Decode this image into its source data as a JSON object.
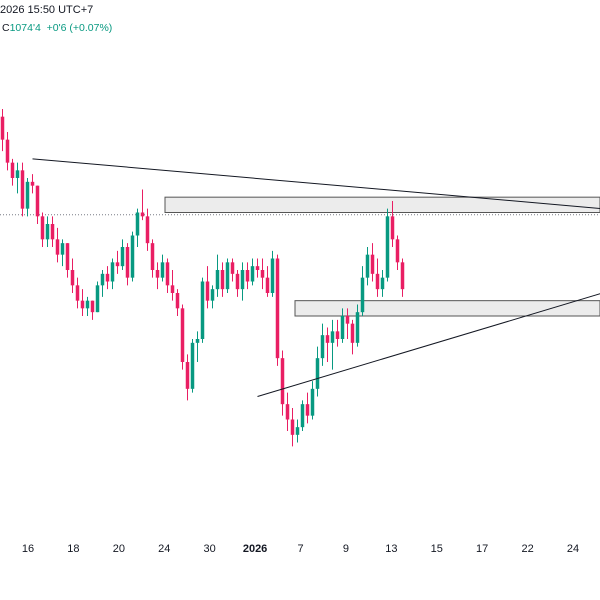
{
  "header": {
    "datetime": "2026 15:50 UTC+7"
  },
  "ohlc": {
    "close_label": "C",
    "close_value": "1074'4",
    "change": "+0'6 (+0.07%)"
  },
  "colors": {
    "up": "#089981",
    "down": "#e91e63",
    "line": "#131722",
    "zone_fill": "#ececec",
    "zone_stroke": "#555555"
  },
  "chart_data": {
    "type": "candlestick",
    "x_tick_labels": [
      "16",
      "18",
      "20",
      "24",
      "30",
      "2026",
      "7",
      "9",
      "13",
      "15",
      "17",
      "22",
      "24"
    ],
    "ohlc": [
      [
        1100,
        1102,
        1091,
        1094
      ],
      [
        1094,
        1096,
        1086,
        1088
      ],
      [
        1088,
        1089,
        1082,
        1084
      ],
      [
        1084,
        1088,
        1080,
        1086
      ],
      [
        1086,
        1088,
        1074,
        1076
      ],
      [
        1076,
        1084,
        1074,
        1083
      ],
      [
        1083,
        1085,
        1080,
        1082
      ],
      [
        1082,
        1082,
        1072,
        1074
      ],
      [
        1074,
        1075,
        1066,
        1068
      ],
      [
        1068,
        1074,
        1066,
        1072
      ],
      [
        1072,
        1074,
        1066,
        1068
      ],
      [
        1068,
        1071,
        1062,
        1064
      ],
      [
        1064,
        1068,
        1061,
        1067
      ],
      [
        1067,
        1067,
        1058,
        1060
      ],
      [
        1060,
        1063,
        1054,
        1056
      ],
      [
        1056,
        1058,
        1050,
        1052
      ],
      [
        1052,
        1055,
        1048,
        1050
      ],
      [
        1050,
        1053,
        1048,
        1052
      ],
      [
        1052,
        1052,
        1047,
        1049
      ],
      [
        1049,
        1057,
        1049,
        1056
      ],
      [
        1056,
        1060,
        1053,
        1059
      ],
      [
        1059,
        1061,
        1055,
        1057
      ],
      [
        1057,
        1063,
        1055,
        1062
      ],
      [
        1062,
        1065,
        1059,
        1061
      ],
      [
        1061,
        1068,
        1060,
        1066
      ],
      [
        1066,
        1067,
        1056,
        1058
      ],
      [
        1058,
        1070,
        1057,
        1069
      ],
      [
        1069,
        1076,
        1066,
        1075
      ],
      [
        1075,
        1081,
        1073,
        1074
      ],
      [
        1074,
        1076,
        1065,
        1067
      ],
      [
        1067,
        1068,
        1058,
        1060
      ],
      [
        1060,
        1062,
        1055,
        1058
      ],
      [
        1058,
        1064,
        1057,
        1062
      ],
      [
        1062,
        1063,
        1054,
        1056
      ],
      [
        1056,
        1060,
        1052,
        1054
      ],
      [
        1054,
        1055,
        1048,
        1050
      ],
      [
        1050,
        1051,
        1034,
        1036
      ],
      [
        1036,
        1038,
        1026,
        1029
      ],
      [
        1029,
        1042,
        1028,
        1041
      ],
      [
        1041,
        1044,
        1036,
        1042
      ],
      [
        1042,
        1058,
        1041,
        1057
      ],
      [
        1057,
        1061,
        1050,
        1052
      ],
      [
        1052,
        1056,
        1050,
        1055
      ],
      [
        1055,
        1064,
        1053,
        1060
      ],
      [
        1060,
        1062,
        1053,
        1055
      ],
      [
        1055,
        1063,
        1054,
        1062
      ],
      [
        1062,
        1063,
        1057,
        1059
      ],
      [
        1059,
        1060,
        1053,
        1055
      ],
      [
        1055,
        1062,
        1052,
        1060
      ],
      [
        1060,
        1062,
        1055,
        1057
      ],
      [
        1057,
        1063,
        1056,
        1061
      ],
      [
        1061,
        1063,
        1058,
        1060
      ],
      [
        1060,
        1063,
        1055,
        1058
      ],
      [
        1058,
        1061,
        1053,
        1054
      ],
      [
        1054,
        1065,
        1053,
        1063
      ],
      [
        1063,
        1064,
        1035,
        1037
      ],
      [
        1037,
        1039,
        1022,
        1025
      ],
      [
        1025,
        1028,
        1018,
        1021
      ],
      [
        1021,
        1024,
        1014,
        1017
      ],
      [
        1017,
        1021,
        1015,
        1019
      ],
      [
        1019,
        1026,
        1018,
        1025
      ],
      [
        1025,
        1028,
        1020,
        1022
      ],
      [
        1022,
        1031,
        1021,
        1029
      ],
      [
        1029,
        1040,
        1027,
        1037
      ],
      [
        1037,
        1046,
        1035,
        1043
      ],
      [
        1043,
        1045,
        1036,
        1041
      ],
      [
        1041,
        1047,
        1034,
        1044
      ],
      [
        1044,
        1047,
        1040,
        1042
      ],
      [
        1042,
        1050,
        1041,
        1048
      ],
      [
        1048,
        1050,
        1042,
        1046
      ],
      [
        1046,
        1047,
        1038,
        1041
      ],
      [
        1041,
        1051,
        1040,
        1049
      ],
      [
        1049,
        1061,
        1048,
        1058
      ],
      [
        1058,
        1066,
        1056,
        1064
      ],
      [
        1064,
        1067,
        1057,
        1059
      ],
      [
        1059,
        1063,
        1053,
        1055
      ],
      [
        1055,
        1060,
        1053,
        1058
      ],
      [
        1058,
        1076,
        1057,
        1074
      ],
      [
        1074,
        1078,
        1066,
        1068
      ],
      [
        1068,
        1069,
        1060,
        1062
      ],
      [
        1062,
        1063,
        1053,
        1055
      ]
    ],
    "zones": [
      {
        "from": 33,
        "to": 120,
        "top": 1079,
        "bottom": 1075
      },
      {
        "from": 59,
        "to": 120,
        "top": 1052,
        "bottom": 1048
      }
    ],
    "trendlines": [
      {
        "from": [
          6,
          1089
        ],
        "to": [
          120,
          1076
        ]
      },
      {
        "from": [
          51,
          1027
        ],
        "to": [
          120,
          1054
        ]
      }
    ],
    "reference_price": 1074.4,
    "y_range": [
      1000,
      1120
    ],
    "visible_bars": 120,
    "grid": false
  }
}
